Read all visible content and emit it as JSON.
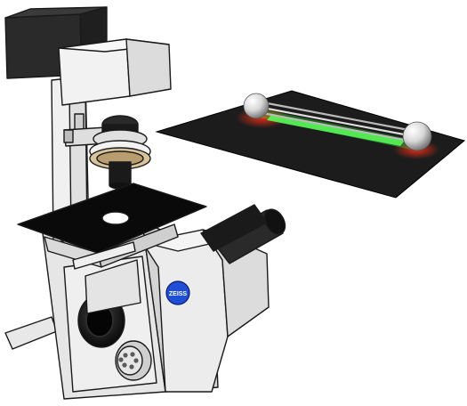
{
  "scene": {
    "objects": [
      "inverted-microscope",
      "stage-inset-panel"
    ],
    "icons": {
      "camera": "camera-block-icon",
      "objective": "objective-lens-icon",
      "eyepiece": "eyepiece-tube-icon",
      "logo": "blue-brand-badge-icon",
      "beads": "optical-trap-bead-icon"
    },
    "colors": {
      "background": "#ffffff",
      "body": "#e3e3e3",
      "body_light": "#f1f1f1",
      "shadow": "#c9c9c9",
      "outline": "#1a1a1a",
      "stage": "#0a0a0a",
      "camera": "#2a2a2a",
      "panel": "#202020",
      "fluorescence_green": "#3cff3c",
      "fluorescence_red": "#ff3018",
      "badge_blue": "#1e4fd6",
      "brass": "#d9c39a"
    },
    "badge_text": "ZEISS"
  }
}
